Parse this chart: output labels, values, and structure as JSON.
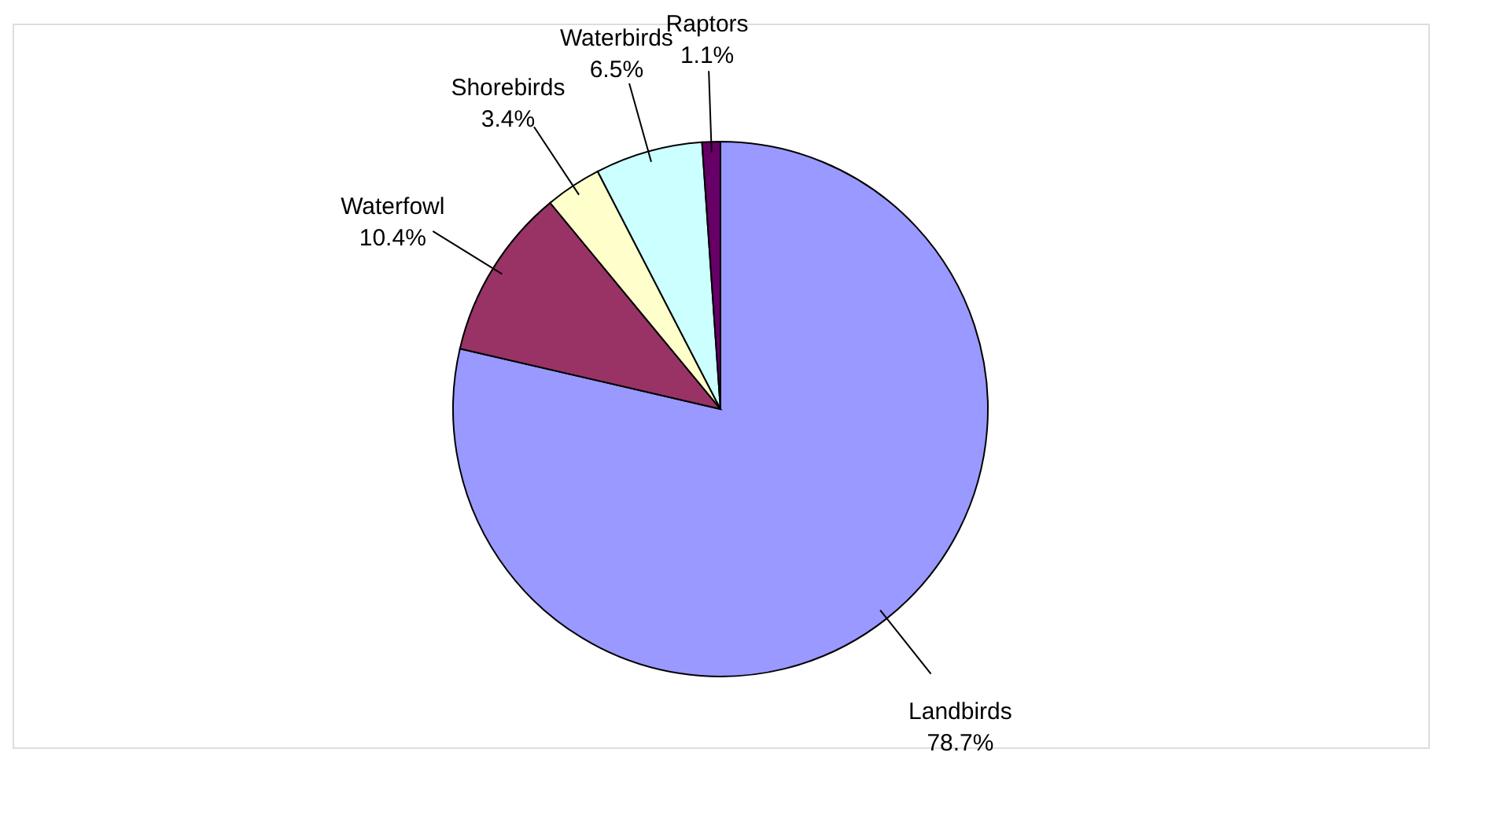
{
  "chart_data": {
    "type": "pie",
    "categories": [
      "Landbirds",
      "Waterfowl",
      "Shorebirds",
      "Waterbirds",
      "Raptors"
    ],
    "values": [
      78.7,
      10.4,
      3.4,
      6.5,
      1.1
    ],
    "colors": [
      "#9999ff",
      "#993366",
      "#ffffcc",
      "#ccffff",
      "#660066"
    ],
    "value_labels": [
      "78.7%",
      "10.4%",
      "3.4%",
      "6.5%",
      "1.1%"
    ],
    "legend": false
  }
}
